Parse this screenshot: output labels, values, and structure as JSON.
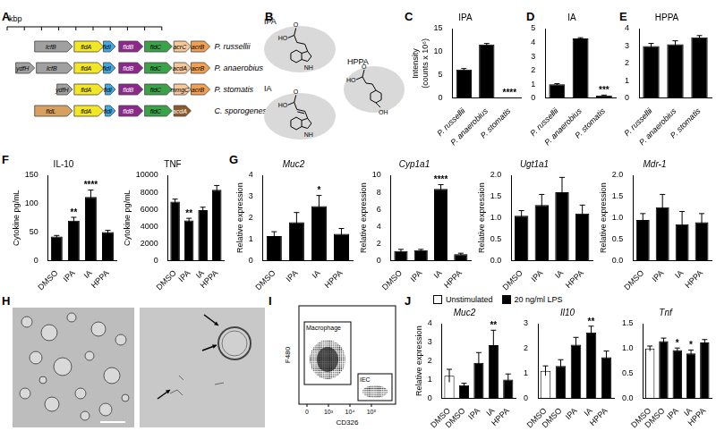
{
  "panel_labels": [
    "A",
    "B",
    "C",
    "D",
    "E",
    "F",
    "G",
    "H",
    "I",
    "J"
  ],
  "gene_clusters": {
    "scale_label": "kbp",
    "scale_ticks": [
      0,
      1,
      2,
      3,
      4,
      5,
      6,
      7,
      8,
      9
    ],
    "rows": [
      {
        "species": "P. russellii",
        "genes": [
          {
            "name": "lcfB",
            "start": 1.6,
            "end": 3.8,
            "color": "#a0a0a0"
          },
          {
            "name": "fldA",
            "start": 3.9,
            "end": 5.6,
            "color": "#f2e625"
          },
          {
            "name": "fldI",
            "start": 5.6,
            "end": 6.3,
            "color": "#3fa9e0"
          },
          {
            "name": "fldB",
            "start": 6.5,
            "end": 7.9,
            "color": "#8c2a8c"
          },
          {
            "name": "fldC",
            "start": 8.0,
            "end": 9.6,
            "color": "#3ca24a"
          },
          {
            "name": "acrC",
            "start": 9.7,
            "end": 10.7,
            "color": "#f5c89a"
          },
          {
            "name": "acrB",
            "start": 10.7,
            "end": 11.8,
            "color": "#f0a050"
          }
        ]
      },
      {
        "species": "P. anaerobius",
        "genes": [
          {
            "name": "ydfH",
            "start": 0.5,
            "end": 1.6,
            "color": "#a0a0a0"
          },
          {
            "name": "lcfB",
            "start": 1.7,
            "end": 3.8,
            "color": "#a0a0a0"
          },
          {
            "name": "fldA",
            "start": 3.9,
            "end": 5.6,
            "color": "#f2e625"
          },
          {
            "name": "fldI",
            "start": 5.6,
            "end": 6.3,
            "color": "#3fa9e0"
          },
          {
            "name": "fldB",
            "start": 6.5,
            "end": 7.9,
            "color": "#8c2a8c"
          },
          {
            "name": "fldC",
            "start": 8.0,
            "end": 9.6,
            "color": "#3ca24a"
          },
          {
            "name": "acdA",
            "start": 9.7,
            "end": 10.7,
            "color": "#f5c89a"
          },
          {
            "name": "acrB",
            "start": 10.7,
            "end": 11.8,
            "color": "#f0a050"
          }
        ]
      },
      {
        "species": "P. stomatis",
        "genes": [
          {
            "name": "ydfH",
            "start": 2.9,
            "end": 3.8,
            "color": "#a0a0a0"
          },
          {
            "name": "fldA",
            "start": 3.9,
            "end": 5.6,
            "color": "#f2e625"
          },
          {
            "name": "fldI",
            "start": 5.7,
            "end": 6.3,
            "color": "#3fa9e0"
          },
          {
            "name": "fldB",
            "start": 6.5,
            "end": 7.9,
            "color": "#8c2a8c"
          },
          {
            "name": "fldC",
            "start": 8.0,
            "end": 9.6,
            "color": "#3ca24a"
          },
          {
            "name": "mmgC",
            "start": 9.7,
            "end": 10.7,
            "color": "#f5c89a"
          },
          {
            "name": "acrB",
            "start": 10.7,
            "end": 11.8,
            "color": "#f0a050"
          }
        ]
      },
      {
        "species": "C. sporogenes",
        "genes": [
          {
            "name": "fldL",
            "start": 1.6,
            "end": 3.8,
            "color": "#d8a060"
          },
          {
            "name": "fldA",
            "start": 3.9,
            "end": 5.6,
            "color": "#f2e625"
          },
          {
            "name": "fldI",
            "start": 5.7,
            "end": 6.3,
            "color": "#3fa9e0"
          },
          {
            "name": "fldB",
            "start": 6.5,
            "end": 7.9,
            "color": "#8c2a8c"
          },
          {
            "name": "fldC",
            "start": 8.0,
            "end": 9.6,
            "color": "#3ca24a"
          },
          {
            "name": "acdA",
            "start": 9.7,
            "end": 10.7,
            "color": "#8b5a2b"
          }
        ]
      }
    ]
  },
  "structures": [
    {
      "name": "IPA",
      "atoms": [
        "HO",
        "O",
        "NH"
      ]
    },
    {
      "name": "IA",
      "atoms": [
        "HO",
        "O",
        "NH"
      ]
    },
    {
      "name": "HPPA",
      "atoms": [
        "HO",
        "O",
        "OH"
      ]
    }
  ],
  "flow_plot": {
    "xlabel": "CD326",
    "ylabel": "F480",
    "xticks": [
      {
        "value": 0,
        "label": "0"
      },
      {
        "value": 1000,
        "label": "10³"
      },
      {
        "value": 10000,
        "label": "10⁴"
      },
      {
        "value": 100000,
        "label": "10⁵"
      }
    ],
    "gates": [
      "Macrophage",
      "IEC"
    ]
  },
  "chart_data": [
    {
      "type": "bar",
      "title": "IPA",
      "ylabel": [
        "Intensity",
        "(counts x 10⁶)"
      ],
      "categories": [
        "P. russellii",
        "P. anaerobius",
        "P. stomatis"
      ],
      "values": [
        6.2,
        11.6,
        0.05
      ],
      "errors": [
        0.2,
        0.2,
        0.02
      ],
      "annotations": [
        null,
        null,
        "****"
      ],
      "color": "#000000",
      "ylim": [
        0,
        15
      ],
      "yticks": [
        0,
        5,
        10,
        15
      ],
      "grid": false
    },
    {
      "type": "bar",
      "title": "IA",
      "categories": [
        "P. russellii",
        "P. anaerobius",
        "P. stomatis"
      ],
      "values": [
        1.0,
        4.3,
        0.2
      ],
      "errors": [
        0.05,
        0.05,
        0.03
      ],
      "annotations": [
        null,
        null,
        "***"
      ],
      "color": "#000000",
      "ylim": [
        0,
        5
      ],
      "yticks": [
        0,
        1,
        2,
        3,
        4,
        5
      ],
      "grid": false
    },
    {
      "type": "bar",
      "title": "HPPA",
      "categories": [
        "P. russellii",
        "P. anaerobius",
        "P. stomatis"
      ],
      "values": [
        3.0,
        3.1,
        3.5
      ],
      "errors": [
        0.15,
        0.2,
        0.1
      ],
      "color": "#000000",
      "ylim": [
        0,
        4
      ],
      "yticks": [
        0,
        1,
        2,
        3,
        4
      ],
      "grid": false
    },
    {
      "type": "bar",
      "title": "IL-10",
      "ylabel": "Cytokine pg/mL",
      "categories": [
        "DMSO",
        "IPA",
        "IA",
        "HPPA"
      ],
      "values": [
        42,
        70,
        112,
        50
      ],
      "errors": [
        2,
        6,
        12,
        3
      ],
      "annotations": [
        null,
        "**",
        "****",
        null
      ],
      "color": "#000000",
      "ylim": [
        0,
        150
      ],
      "yticks": [
        0,
        50,
        100,
        150
      ],
      "grid": false
    },
    {
      "type": "bar",
      "title": "TNF",
      "ylabel": "Cytokine pg/mL",
      "categories": [
        "DMSO",
        "IPA",
        "IA",
        "HPPA"
      ],
      "values": [
        6900,
        4700,
        5900,
        8300
      ],
      "errors": [
        300,
        250,
        350,
        500
      ],
      "annotations": [
        null,
        "**",
        null,
        null
      ],
      "color": "#000000",
      "ylim": [
        0,
        10000
      ],
      "yticks": [
        0,
        2000,
        4000,
        6000,
        8000,
        10000
      ],
      "grid": false
    },
    {
      "type": "bar",
      "title": "Muc2",
      "ylabel": "Relative expression",
      "categories": [
        "DMSO",
        "IPA",
        "IA",
        "HPPA"
      ],
      "values": [
        1.15,
        1.8,
        2.55,
        1.25
      ],
      "errors": [
        0.2,
        0.45,
        0.5,
        0.25
      ],
      "annotations": [
        null,
        null,
        "*",
        null
      ],
      "color": "#000000",
      "ylim": [
        0,
        4
      ],
      "yticks": [
        0,
        1,
        2,
        3,
        4
      ],
      "grid": false
    },
    {
      "type": "bar",
      "title": "Cyp1a1",
      "ylabel": "Relative expression",
      "categories": [
        "DMSO",
        "IPA",
        "IA",
        "HPPA"
      ],
      "values": [
        1.1,
        1.2,
        8.4,
        0.75
      ],
      "errors": [
        0.2,
        0.1,
        0.5,
        0.1
      ],
      "annotations": [
        null,
        null,
        "****",
        null
      ],
      "color": "#000000",
      "ylim": [
        0,
        10
      ],
      "yticks": [
        0,
        2,
        4,
        6,
        8,
        10
      ],
      "grid": false
    },
    {
      "type": "bar",
      "title": "Ugt1a1",
      "ylabel": "Relative expression",
      "categories": [
        "DMSO",
        "IPA",
        "IA",
        "HPPA"
      ],
      "values": [
        1.05,
        1.3,
        1.6,
        1.1
      ],
      "errors": [
        0.12,
        0.25,
        0.35,
        0.2
      ],
      "color": "#000000",
      "ylim": [
        0,
        2
      ],
      "yticks": [
        {
          "value": 0,
          "label": "0.0"
        },
        {
          "value": 0.5,
          "label": "0.5"
        },
        {
          "value": 1,
          "label": "1.0"
        },
        {
          "value": 1.5,
          "label": "1.5"
        },
        {
          "value": 2,
          "label": "2.0"
        }
      ],
      "grid": false
    },
    {
      "type": "bar",
      "title": "Mdr-1",
      "ylabel": "Relative expression",
      "categories": [
        "DMSO",
        "IPA",
        "IA",
        "HPPA"
      ],
      "values": [
        0.95,
        1.25,
        0.85,
        0.9
      ],
      "errors": [
        0.15,
        0.3,
        0.3,
        0.2
      ],
      "color": "#000000",
      "ylim": [
        0,
        2
      ],
      "yticks": [
        {
          "value": 0,
          "label": "0.0"
        },
        {
          "value": 0.5,
          "label": "0.5"
        },
        {
          "value": 1,
          "label": "1.0"
        },
        {
          "value": 1.5,
          "label": "1.5"
        },
        {
          "value": 2,
          "label": "2.0"
        }
      ],
      "grid": false
    },
    {
      "type": "bar",
      "title": "Muc2",
      "ylabel": "Relative expression",
      "categories": [
        "DMSO",
        "DMSO",
        "IPA",
        "IA",
        "HPPA"
      ],
      "legend": "top",
      "series": [
        {
          "name": "Unstimulated",
          "color": "#ffffff",
          "values": [
            1.2,
            null,
            null,
            null,
            null
          ],
          "errors": [
            0.35,
            null,
            null,
            null,
            null
          ]
        },
        {
          "name": "20 ng/ml LPS",
          "color": "#000000",
          "values": [
            null,
            0.7,
            1.9,
            2.85,
            1.0
          ],
          "errors": [
            null,
            0.1,
            0.55,
            0.8,
            0.3
          ],
          "annotations": [
            null,
            null,
            null,
            "**",
            null
          ]
        }
      ],
      "ylim": [
        0,
        4
      ],
      "yticks": [
        0,
        1,
        2,
        3,
        4
      ],
      "grid": false
    },
    {
      "type": "bar",
      "title": "Il10",
      "categories": [
        "DMSO",
        "DMSO",
        "IPA",
        "IA",
        "HPPA"
      ],
      "series": [
        {
          "name": "Unstimulated",
          "color": "#ffffff",
          "values": [
            1.1,
            null,
            null,
            null,
            null
          ],
          "errors": [
            0.2,
            null,
            null,
            null,
            null
          ]
        },
        {
          "name": "20 ng/ml LPS",
          "color": "#000000",
          "values": [
            null,
            1.3,
            2.15,
            2.65,
            1.65
          ],
          "errors": [
            null,
            0.25,
            0.3,
            0.25,
            0.25
          ],
          "annotations": [
            null,
            null,
            null,
            "**",
            null
          ]
        }
      ],
      "ylim": [
        0,
        3
      ],
      "yticks": [
        0,
        1,
        2,
        3
      ],
      "grid": false
    },
    {
      "type": "bar",
      "title": "Tnf",
      "categories": [
        "DMSO",
        "DMSO",
        "IPA",
        "IA",
        "HPPA"
      ],
      "series": [
        {
          "name": "Unstimulated",
          "color": "#ffffff",
          "values": [
            1.0,
            null,
            null,
            null,
            null
          ],
          "errors": [
            0.05,
            null,
            null,
            null,
            null
          ]
        },
        {
          "name": "20 ng/ml LPS",
          "color": "#000000",
          "values": [
            null,
            1.15,
            0.97,
            0.9,
            1.12
          ],
          "errors": [
            null,
            0.06,
            0.04,
            0.07,
            0.06
          ],
          "annotations": [
            null,
            null,
            "*",
            "*",
            null
          ]
        }
      ],
      "ylim": [
        0,
        1.5
      ],
      "yticks": [
        {
          "value": 0,
          "label": "0.0"
        },
        {
          "value": 0.5,
          "label": "0.5"
        },
        {
          "value": 1,
          "label": "1.0"
        },
        {
          "value": 1.5,
          "label": "1.5"
        }
      ],
      "grid": false
    }
  ]
}
